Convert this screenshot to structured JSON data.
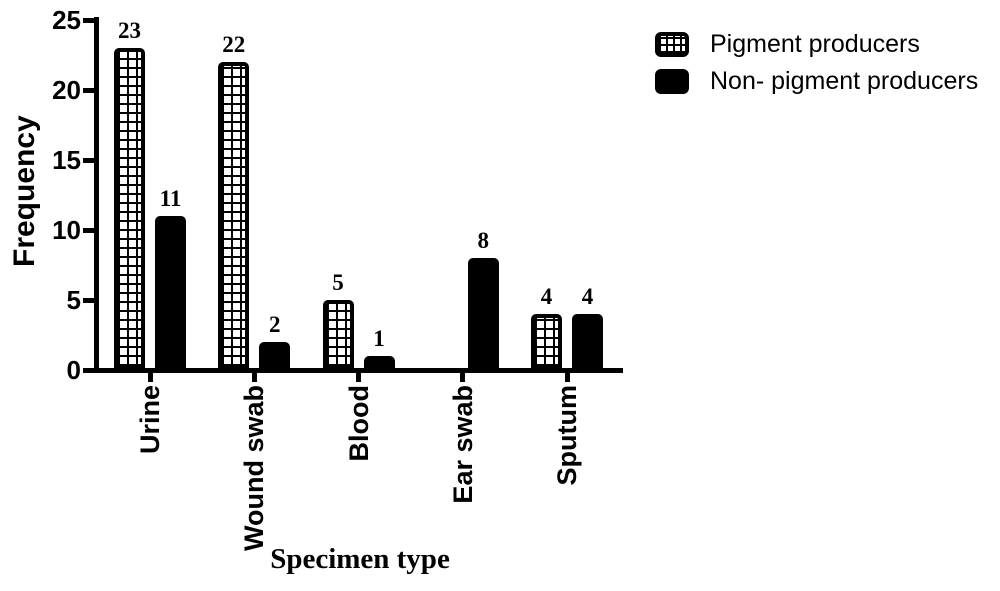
{
  "figure": {
    "background": "#ffffff",
    "ink_color": "#000000"
  },
  "chart_data": {
    "type": "bar",
    "title": "",
    "xlabel": "Specimen type",
    "ylabel": "Frequency",
    "categories": [
      "Urine",
      "Wound swab",
      "Blood",
      "Ear swab",
      "Sputum"
    ],
    "series": [
      {
        "name": "Pigment producers",
        "pattern": "checkered",
        "values": [
          23,
          22,
          5,
          0,
          4
        ]
      },
      {
        "name": "Non- pigment producers",
        "pattern": "solid",
        "values": [
          11,
          2,
          1,
          8,
          4
        ]
      }
    ],
    "value_labels": [
      [
        "23",
        "22",
        "5",
        "",
        "4"
      ],
      [
        "11",
        "2",
        "1",
        "8",
        "4"
      ]
    ],
    "y_ticks": [
      0,
      5,
      10,
      15,
      20,
      25
    ],
    "ylim": [
      0,
      25
    ],
    "grid": false,
    "legend_position": "top-right",
    "bar_fill": "#000000"
  }
}
